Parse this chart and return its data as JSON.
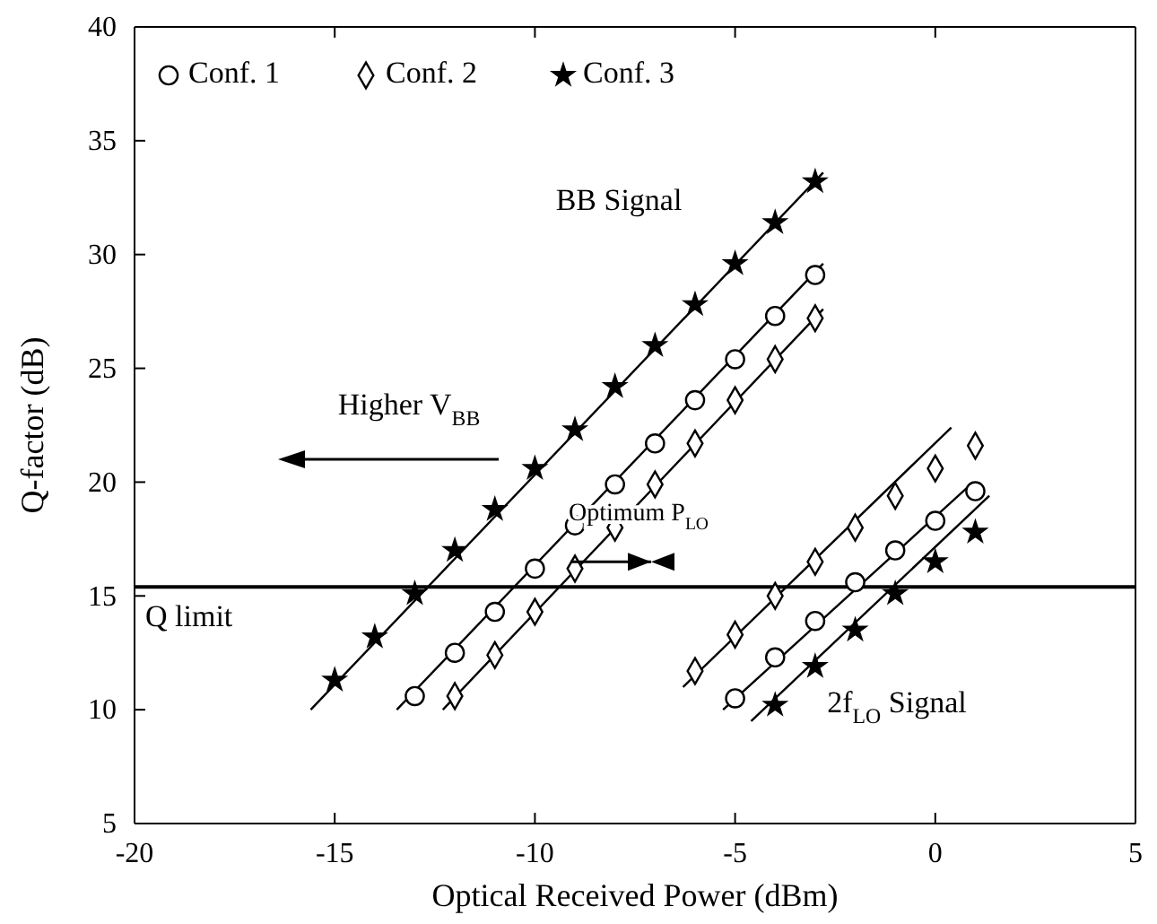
{
  "chart_data": {
    "type": "scatter",
    "xlabel": "Optical Received Power (dBm)",
    "ylabel": "Q-factor (dB)",
    "xlim": [
      -20,
      5
    ],
    "ylim": [
      5,
      40
    ],
    "xticks": [
      -20,
      -15,
      -10,
      -5,
      0,
      5
    ],
    "yticks": [
      5,
      10,
      15,
      20,
      25,
      30,
      35,
      40
    ],
    "grid": false,
    "legend": "top left",
    "series": [
      {
        "name": "Conf. 1",
        "color": "#000000",
        "marker": "circle",
        "x": [
          -13,
          -12,
          -11,
          -10,
          -9,
          -8,
          -7,
          -6,
          -5,
          -4,
          -3
        ],
        "values": [
          10.6,
          12.5,
          14.3,
          16.2,
          18.1,
          19.9,
          21.7,
          23.6,
          25.4,
          27.3,
          29.1
        ]
      },
      {
        "name": "Conf. 2",
        "color": "#000000",
        "marker": "diamond",
        "x": [
          -12,
          -11,
          -10,
          -9,
          -8,
          -7,
          -6,
          -5,
          -4,
          -3
        ],
        "values": [
          10.6,
          12.4,
          14.3,
          16.2,
          18.0,
          19.9,
          21.7,
          23.6,
          25.4,
          27.2
        ]
      },
      {
        "name": "Conf. 3",
        "color": "#000000",
        "marker": "star",
        "x": [
          -15,
          -14,
          -13,
          -12,
          -11,
          -10,
          -9,
          -8,
          -7,
          -6,
          -5,
          -4,
          -3
        ],
        "values": [
          11.3,
          13.2,
          15.1,
          17.0,
          18.8,
          20.6,
          22.3,
          24.2,
          26.0,
          27.8,
          29.6,
          31.4,
          33.2
        ]
      },
      {
        "color": "#000000",
        "marker": "circle",
        "x": [
          -5,
          -4,
          -3,
          -2,
          -1,
          0,
          1
        ],
        "values": [
          10.5,
          12.3,
          13.9,
          15.6,
          17.0,
          18.3,
          19.6
        ]
      },
      {
        "color": "#000000",
        "marker": "diamond",
        "x": [
          -6,
          -5,
          -4,
          -3,
          -2,
          -1,
          0,
          1
        ],
        "values": [
          11.7,
          13.3,
          15.0,
          16.5,
          18.0,
          19.4,
          20.6,
          21.6
        ]
      },
      {
        "color": "#000000",
        "marker": "star",
        "x": [
          -4,
          -3,
          -2,
          -1,
          0,
          1
        ],
        "values": [
          10.2,
          11.9,
          13.5,
          15.1,
          16.5,
          17.8
        ]
      },
      {
        "type": "line",
        "color": "#000000",
        "marker": "none",
        "x": [
          -15.6,
          -2.8
        ],
        "values": [
          10.0,
          33.6
        ]
      },
      {
        "type": "line",
        "color": "#000000",
        "marker": "none",
        "x": [
          -13.45,
          -2.8
        ],
        "values": [
          10.0,
          29.6
        ]
      },
      {
        "type": "line",
        "color": "#000000",
        "marker": "none",
        "x": [
          -12.3,
          -2.8
        ],
        "values": [
          10.0,
          27.6
        ]
      },
      {
        "type": "line",
        "color": "#000000",
        "marker": "none",
        "x": [
          -6.3,
          0.4
        ],
        "values": [
          11.0,
          22.4
        ]
      },
      {
        "type": "line",
        "color": "#000000",
        "marker": "none",
        "x": [
          -5.3,
          0.95
        ],
        "values": [
          10.0,
          20.0
        ]
      },
      {
        "type": "line",
        "color": "#000000",
        "marker": "none",
        "x": [
          -4.6,
          1.35
        ],
        "values": [
          9.5,
          19.4
        ]
      }
    ],
    "ref_lines": [
      {
        "axis": "y",
        "value": 15.4,
        "label": "Q limit",
        "color": "#000000"
      }
    ],
    "annotations": [
      "BB Signal",
      "Higher V$_{BB}$",
      "Optimum P$_{LO}$",
      "2f$_{LO}$ Signal"
    ]
  }
}
